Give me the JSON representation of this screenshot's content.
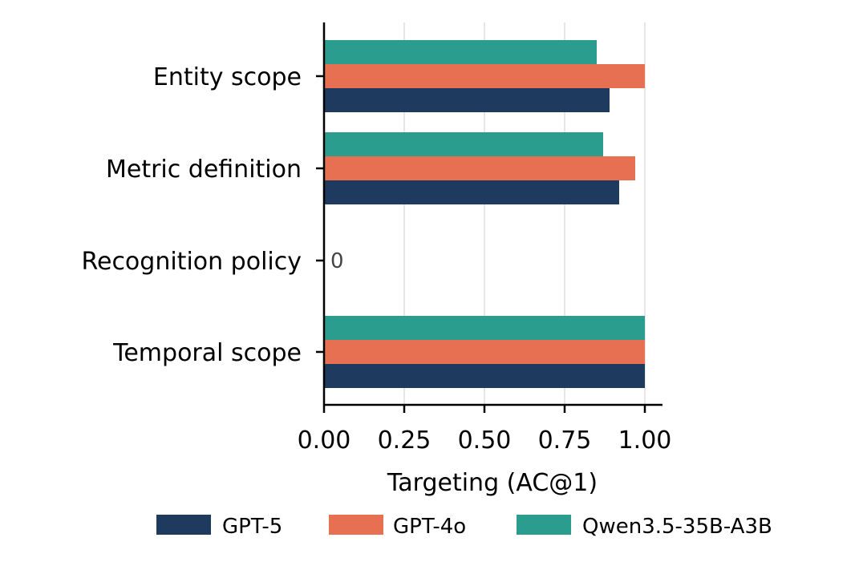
{
  "chart_data": {
    "type": "bar",
    "orientation": "horizontal",
    "categories": [
      "Entity scope",
      "Metric definition",
      "Recognition policy",
      "Temporal scope"
    ],
    "series": [
      {
        "name": "GPT-5",
        "color": "#1f3a5f",
        "values": [
          0.89,
          0.92,
          0,
          1.0
        ]
      },
      {
        "name": "GPT-4o",
        "color": "#e87052",
        "values": [
          1.0,
          0.97,
          0,
          1.0
        ]
      },
      {
        "name": "Qwen3.5-35B-A3B",
        "color": "#2a9d8f",
        "values": [
          0.85,
          0.87,
          0,
          1.0
        ]
      }
    ],
    "xlabel": "Targeting (AC@1)",
    "ylabel": "",
    "xlim": [
      0,
      1.05
    ],
    "xticks": [
      "0.00",
      "0.25",
      "0.50",
      "0.75",
      "1.00"
    ],
    "grid": "vertical",
    "legend": "bottom",
    "annotations": [
      {
        "category": "Recognition policy",
        "text": "0"
      }
    ]
  }
}
